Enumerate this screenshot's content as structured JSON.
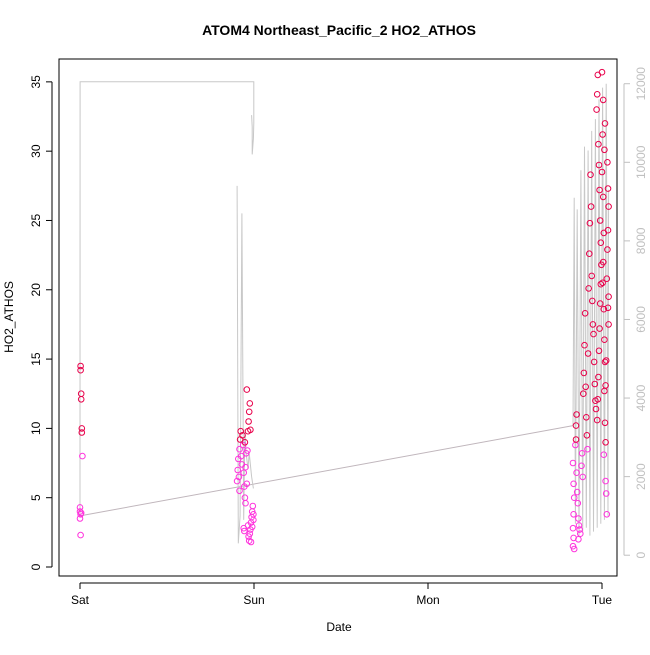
{
  "chart_data": {
    "type": "scatter",
    "title": "ATOM4 Northeast_Pacific_2 HO2_ATHOS",
    "xlabel": "Date",
    "ylabel": "HO2_ATHOS",
    "x_ticks": [
      "Sat",
      "Sun",
      "Mon",
      "Tue"
    ],
    "y_ticks": [
      "0",
      "5",
      "10",
      "15",
      "20",
      "25",
      "30",
      "35"
    ],
    "y2_ticks": [
      "0",
      "2000",
      "4000",
      "6000",
      "8000",
      "10000",
      "12000"
    ],
    "ylim": [
      0,
      36
    ],
    "y2lim": [
      -300,
      12400
    ],
    "grid": false,
    "legend": "none",
    "colors": {
      "points_low": "#ff33dd",
      "points_high": "#e8004a",
      "altitude_line": "#c8c8c8",
      "trend_line": "#c0b6bc",
      "axis": "#000000",
      "right_axis": "#c0c0c0"
    },
    "series": [
      {
        "kind": "points",
        "points": [
          [
            "Sat 00:05",
            14.5
          ],
          [
            "Sat 00:05",
            14.2
          ],
          [
            "Sat 00:10",
            12.5
          ],
          [
            "Sat 00:10",
            12.1
          ],
          [
            "Sat 00:15",
            10.0
          ],
          [
            "Sat 00:15",
            9.7
          ],
          [
            "Sat 00:20",
            8.0
          ],
          [
            "Sat 00:00",
            4.3
          ],
          [
            "Sat 00:00",
            4.0
          ],
          [
            "Sat 00:05",
            3.8
          ],
          [
            "Sat 00:00",
            3.5
          ],
          [
            "Sat 00:05",
            2.3
          ],
          [
            "Sat 00:10",
            3.9
          ],
          [
            "Sat 21:40",
            6.2
          ],
          [
            "Sat 21:45",
            7.0
          ],
          [
            "Sat 21:50",
            7.8
          ],
          [
            "Sat 22:00",
            8.5
          ],
          [
            "Sat 22:05",
            9.2
          ],
          [
            "Sat 22:10",
            9.8
          ],
          [
            "Sat 22:00",
            5.5
          ],
          [
            "Sat 21:55",
            6.5
          ],
          [
            "Sat 22:15",
            8.0
          ],
          [
            "Sat 22:20",
            7.4
          ],
          [
            "Sat 22:25",
            9.5
          ],
          [
            "Sat 22:30",
            8.8
          ],
          [
            "Sat 22:35",
            6.8
          ],
          [
            "Sat 22:40",
            5.8
          ],
          [
            "Sat 22:45",
            5.0
          ],
          [
            "Sat 22:50",
            4.6
          ],
          [
            "Sat 23:00",
            6.0
          ],
          [
            "Sat 23:05",
            8.4
          ],
          [
            "Sat 23:10",
            9.8
          ],
          [
            "Sat 23:15",
            10.5
          ],
          [
            "Sat 23:20",
            11.2
          ],
          [
            "Sat 23:25",
            11.8
          ],
          [
            "Sat 23:00",
            12.8
          ],
          [
            "Sat 23:30",
            9.9
          ],
          [
            "Sat 22:50",
            7.2
          ],
          [
            "Sat 22:55",
            8.2
          ],
          [
            "Sat 22:45",
            9.0
          ],
          [
            "Sat 22:35",
            2.8
          ],
          [
            "Sat 22:40",
            2.6
          ],
          [
            "Sat 23:10",
            3.0
          ],
          [
            "Sat 23:15",
            2.2
          ],
          [
            "Sat 23:20",
            1.9
          ],
          [
            "Sat 23:25",
            2.4
          ],
          [
            "Sat 23:30",
            2.7
          ],
          [
            "Sat 23:35",
            3.2
          ],
          [
            "Sat 23:40",
            3.6
          ],
          [
            "Sat 23:45",
            4.0
          ],
          [
            "Sat 23:50",
            4.4
          ],
          [
            "Sat 23:55",
            3.4
          ],
          [
            "Sat 23:35",
            1.8
          ],
          [
            "Sat 23:45",
            2.9
          ],
          [
            "Sat 23:55",
            3.8
          ],
          [
            "Mon 20:00",
            7.5
          ],
          [
            "Mon 20:05",
            6.0
          ],
          [
            "Mon 20:10",
            5.0
          ],
          [
            "Mon 20:05",
            3.8
          ],
          [
            "Mon 20:00",
            2.8
          ],
          [
            "Mon 20:05",
            2.1
          ],
          [
            "Mon 20:00",
            1.5
          ],
          [
            "Mon 20:10",
            1.3
          ],
          [
            "Mon 20:20",
            8.8
          ],
          [
            "Mon 20:25",
            10.2
          ],
          [
            "Mon 20:30",
            11.0
          ],
          [
            "Mon 20:25",
            9.2
          ],
          [
            "Mon 20:30",
            6.8
          ],
          [
            "Mon 20:35",
            5.4
          ],
          [
            "Mon 20:40",
            4.6
          ],
          [
            "Mon 20:45",
            3.5
          ],
          [
            "Mon 20:50",
            3.0
          ],
          [
            "Mon 20:55",
            2.7
          ],
          [
            "Mon 21:00",
            2.4
          ],
          [
            "Mon 20:45",
            2.0
          ],
          [
            "Mon 21:10",
            7.3
          ],
          [
            "Mon 21:15",
            8.2
          ],
          [
            "Mon 21:20",
            6.5
          ],
          [
            "Mon 21:25",
            12.5
          ],
          [
            "Mon 21:30",
            14.0
          ],
          [
            "Mon 21:35",
            16.0
          ],
          [
            "Mon 21:40",
            18.3
          ],
          [
            "Mon 21:45",
            13.0
          ],
          [
            "Mon 21:50",
            10.8
          ],
          [
            "Mon 21:55",
            9.5
          ],
          [
            "Mon 22:00",
            8.5
          ],
          [
            "Mon 22:05",
            15.4
          ],
          [
            "Mon 22:10",
            20.1
          ],
          [
            "Mon 22:15",
            22.6
          ],
          [
            "Mon 22:20",
            24.8
          ],
          [
            "Mon 22:25",
            28.3
          ],
          [
            "Mon 22:30",
            26.0
          ],
          [
            "Mon 22:35",
            21.0
          ],
          [
            "Mon 22:40",
            19.2
          ],
          [
            "Mon 22:45",
            17.5
          ],
          [
            "Mon 22:50",
            16.8
          ],
          [
            "Mon 22:55",
            14.8
          ],
          [
            "Mon 23:00",
            13.2
          ],
          [
            "Mon 23:05",
            12.0
          ],
          [
            "Mon 23:10",
            11.4
          ],
          [
            "Mon 23:15",
            33.0
          ],
          [
            "Mon 23:20",
            34.1
          ],
          [
            "Mon 23:25",
            35.5
          ],
          [
            "Mon 23:30",
            30.5
          ],
          [
            "Mon 23:35",
            29.0
          ],
          [
            "Mon 23:40",
            27.2
          ],
          [
            "Mon 23:45",
            25.0
          ],
          [
            "Mon 23:50",
            23.4
          ],
          [
            "Mon 23:55",
            21.8
          ],
          [
            "Mon 23:50",
            20.4
          ],
          [
            "Mon 23:45",
            19.0
          ],
          [
            "Mon 23:40",
            17.2
          ],
          [
            "Mon 23:35",
            15.6
          ],
          [
            "Mon 23:30",
            13.7
          ],
          [
            "Mon 23:25",
            12.1
          ],
          [
            "Mon 23:20",
            10.6
          ],
          [
            "Tue 00:00",
            35.7
          ],
          [
            "Tue 00:05",
            31.2
          ],
          [
            "Tue 00:00",
            28.5
          ],
          [
            "Tue 00:10",
            26.7
          ],
          [
            "Tue 00:15",
            24.1
          ],
          [
            "Tue 00:10",
            22.0
          ],
          [
            "Tue 00:05",
            20.5
          ],
          [
            "Tue 00:15",
            18.6
          ],
          [
            "Tue 00:20",
            16.4
          ],
          [
            "Tue 00:25",
            14.8
          ],
          [
            "Tue 00:20",
            12.7
          ],
          [
            "Tue 00:25",
            10.4
          ],
          [
            "Tue 00:30",
            9.0
          ],
          [
            "Tue 00:15",
            8.1
          ],
          [
            "Tue 00:30",
            6.2
          ],
          [
            "Tue 00:35",
            5.3
          ],
          [
            "Tue 00:40",
            3.8
          ],
          [
            "Tue 00:45",
            29.2
          ],
          [
            "Tue 00:50",
            27.3
          ],
          [
            "Tue 00:55",
            26.0
          ],
          [
            "Tue 00:50",
            24.3
          ],
          [
            "Tue 00:45",
            22.9
          ],
          [
            "Tue 00:40",
            20.8
          ],
          [
            "Tue 00:55",
            19.5
          ],
          [
            "Tue 00:50",
            18.7
          ],
          [
            "Tue 00:55",
            17.5
          ],
          [
            "Tue 00:35",
            14.9
          ],
          [
            "Tue 00:30",
            13.1
          ],
          [
            "Tue 00:20",
            30.1
          ],
          [
            "Tue 00:25",
            32.0
          ],
          [
            "Tue 00:10",
            33.7
          ]
        ]
      },
      {
        "kind": "altitude-line",
        "axis": "right",
        "points": [
          [
            "Sat 00:00",
            1000
          ],
          [
            "Sat 00:01",
            12050
          ],
          [
            "Sat 00:30",
            12050
          ],
          [
            "Sat 10:00",
            12050
          ],
          [
            "Sat 23:58",
            12050
          ],
          [
            "Sat 23:58",
            11000
          ],
          [
            "Sat 23:55",
            10600
          ],
          [
            "Sat 23:50",
            10400
          ],
          [
            "Sat 23:45",
            10200
          ],
          [
            "Sat 23:45",
            10900
          ],
          [
            "Sat 23:40",
            11200
          ]
        ]
      },
      {
        "kind": "altitude-line",
        "axis": "right",
        "points": [
          [
            "Sat 21:40",
            9400
          ],
          [
            "Sat 21:50",
            300
          ],
          [
            "Sat 22:05",
            1000
          ],
          [
            "Sat 22:20",
            8700
          ],
          [
            "Sat 22:35",
            900
          ],
          [
            "Sat 22:45",
            3200
          ],
          [
            "Sat 22:55",
            2600
          ],
          [
            "Sat 23:10",
            2200
          ],
          [
            "Sat 23:20",
            2600
          ],
          [
            "Sat 23:30",
            2300
          ],
          [
            "Sat 23:40",
            2000
          ],
          [
            "Sat 23:55",
            1700
          ]
        ]
      },
      {
        "kind": "altitude-line",
        "axis": "right",
        "points": [
          [
            "Mon 20:00",
            3300
          ],
          [
            "Mon 20:10",
            9100
          ],
          [
            "Mon 20:20",
            800
          ],
          [
            "Mon 20:35",
            8800
          ],
          [
            "Mon 20:50",
            500
          ],
          [
            "Mon 21:05",
            9800
          ],
          [
            "Mon 21:20",
            600
          ],
          [
            "Mon 21:35",
            10400
          ],
          [
            "Mon 21:50",
            700
          ],
          [
            "Mon 22:05",
            10300
          ],
          [
            "Mon 22:20",
            500
          ],
          [
            "Mon 22:35",
            10800
          ],
          [
            "Mon 22:50",
            600
          ],
          [
            "Mon 23:05",
            11100
          ],
          [
            "Mon 23:20",
            700
          ],
          [
            "Mon 23:35",
            11600
          ],
          [
            "Mon 23:50",
            800
          ],
          [
            "Tue 00:05",
            11900
          ],
          [
            "Tue 00:20",
            900
          ],
          [
            "Tue 00:35",
            12000
          ],
          [
            "Tue 00:50",
            1000
          ],
          [
            "Tue 00:55",
            9300
          ]
        ]
      },
      {
        "kind": "trend-line",
        "axis": "right",
        "points": [
          [
            "Sat 00:00",
            1000
          ],
          [
            "Mon 20:00",
            3300
          ]
        ]
      }
    ]
  }
}
